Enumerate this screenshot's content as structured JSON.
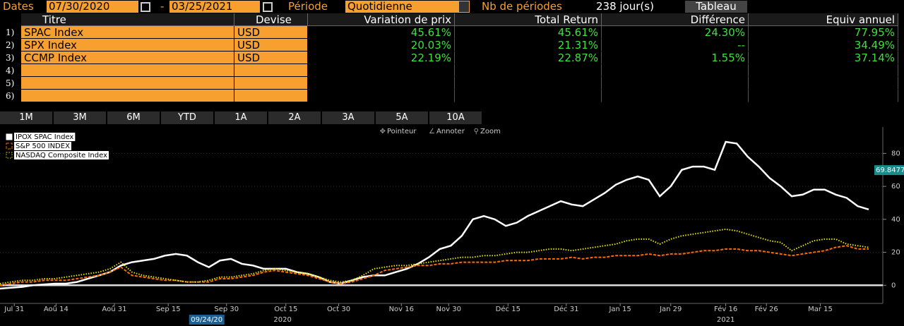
{
  "header": {
    "dates_label": "Dates",
    "start_date": "07/30/2020",
    "separator": "-",
    "end_date": "03/25/2021",
    "period_label": "Période",
    "period": "Quotidienne",
    "periods_label": "Nb de périodes",
    "periods": "238 jour(s)",
    "button": "Tableau"
  },
  "table": {
    "columns": [
      "Titre",
      "Devise",
      "Variation de prix",
      "Total Return",
      "Différence",
      "Equiv annuel"
    ],
    "row_numbers": [
      "1)",
      "2)",
      "3)",
      "4)",
      "5)",
      "6)"
    ],
    "rows": [
      [
        "SPAC Index",
        "USD",
        "45.61%",
        "45.61%",
        "24.30%",
        "77.95%"
      ],
      [
        "SPX Index",
        "USD",
        "20.03%",
        "21.31%",
        "--",
        "34.49%"
      ],
      [
        "CCMP Index",
        "USD",
        "22.19%",
        "22.87%",
        "1.55%",
        "37.14%"
      ]
    ]
  },
  "range_buttons": [
    "1M",
    "3M",
    "6M",
    "YTD",
    "1A",
    "2A",
    "3A",
    "5A",
    "10A"
  ],
  "toolbar": [
    "Pointeur",
    "Annoter",
    "Zoom"
  ],
  "chart_data": {
    "type": "line",
    "series": [
      {
        "name": "IPOX SPAC Index",
        "color": "#ffffff",
        "style": "solid",
        "values": [
          -2,
          -1.5,
          -1,
          0,
          0.5,
          1,
          1,
          2,
          4,
          6,
          8,
          12,
          14,
          15,
          16,
          18,
          19,
          18,
          14,
          11,
          15,
          16,
          13,
          12,
          10,
          10,
          10,
          8,
          7,
          5,
          2,
          1,
          3,
          5,
          6,
          6,
          8,
          10,
          13,
          17,
          22,
          24,
          30,
          40,
          42,
          40,
          36,
          38,
          42,
          45,
          48,
          51,
          49,
          48,
          52,
          56,
          61,
          64,
          66,
          64,
          54,
          60,
          70,
          72,
          72,
          70,
          87,
          86,
          78,
          72,
          65,
          60,
          54,
          55,
          58,
          58,
          55,
          53,
          48,
          46
        ]
      },
      {
        "name": "S&P 500 INDEX",
        "color": "#ff6a00",
        "style": "dashed",
        "values": [
          0,
          1,
          2,
          2,
          3,
          3,
          3,
          4,
          5,
          6,
          8,
          11,
          6,
          5,
          4,
          3,
          3,
          2,
          2,
          2,
          4,
          4,
          5,
          6,
          8,
          9,
          8,
          7,
          6,
          4,
          2,
          1,
          2,
          4,
          6,
          9,
          10,
          11,
          12,
          12,
          13,
          13,
          14,
          14,
          14,
          14,
          15,
          15,
          15,
          16,
          16,
          16,
          17,
          16,
          17,
          17,
          18,
          18,
          18,
          19,
          18,
          19,
          19,
          20,
          21,
          21,
          22,
          22,
          21,
          21,
          20,
          19,
          18,
          19,
          20,
          21,
          23,
          24,
          22,
          22
        ]
      },
      {
        "name": "NASDAQ Composite Index",
        "color": "#e6e600",
        "style": "dotted",
        "values": [
          1,
          2,
          3,
          3,
          4,
          4,
          5,
          6,
          7,
          8,
          10,
          14,
          8,
          6,
          5,
          4,
          3,
          2,
          2,
          3,
          5,
          5,
          6,
          7,
          9,
          10,
          9,
          8,
          7,
          5,
          3,
          2,
          3,
          6,
          10,
          11,
          12,
          12,
          13,
          14,
          15,
          16,
          17,
          17,
          18,
          18,
          19,
          20,
          20,
          21,
          22,
          22,
          21,
          22,
          23,
          24,
          25,
          27,
          28,
          28,
          25,
          28,
          30,
          31,
          32,
          33,
          34,
          33,
          31,
          29,
          27,
          26,
          21,
          24,
          27,
          28,
          28,
          25,
          24,
          23
        ]
      }
    ],
    "xlim": [
      0,
      79
    ],
    "xticks": [
      {
        "value": 1.3,
        "label": "Jul 31"
      },
      {
        "value": 5.1,
        "label": "Aoû 14"
      },
      {
        "value": 10.4,
        "label": "Aoû 31"
      },
      {
        "value": 15.3,
        "label": "Sep 15"
      },
      {
        "value": 20.6,
        "label": "Sep 30"
      },
      {
        "value": 26,
        "label": "Oct 15"
      },
      {
        "value": 30.8,
        "label": "Oct 30"
      },
      {
        "value": 36.5,
        "label": "Nov 16"
      },
      {
        "value": 40.8,
        "label": "Nov 30"
      },
      {
        "value": 46.2,
        "label": "Déc 15"
      },
      {
        "value": 51.5,
        "label": "Déc 31"
      },
      {
        "value": 56.4,
        "label": "Jan 15"
      },
      {
        "value": 61,
        "label": "Jan 29"
      },
      {
        "value": 66,
        "label": "Fév 16"
      },
      {
        "value": 69.7,
        "label": "Fév 26"
      },
      {
        "value": 74.6,
        "label": "Mar 15"
      }
    ],
    "year_ticks": [
      {
        "value": 25.7,
        "label": "2020"
      },
      {
        "value": 66,
        "label": "2021"
      }
    ],
    "cursor": {
      "value": 18.8,
      "label": "09/24/20"
    },
    "last_value": 69.8477,
    "ylim": [
      -11,
      96
    ],
    "yticks": [
      0,
      20,
      40,
      60,
      80
    ],
    "grid": true
  }
}
